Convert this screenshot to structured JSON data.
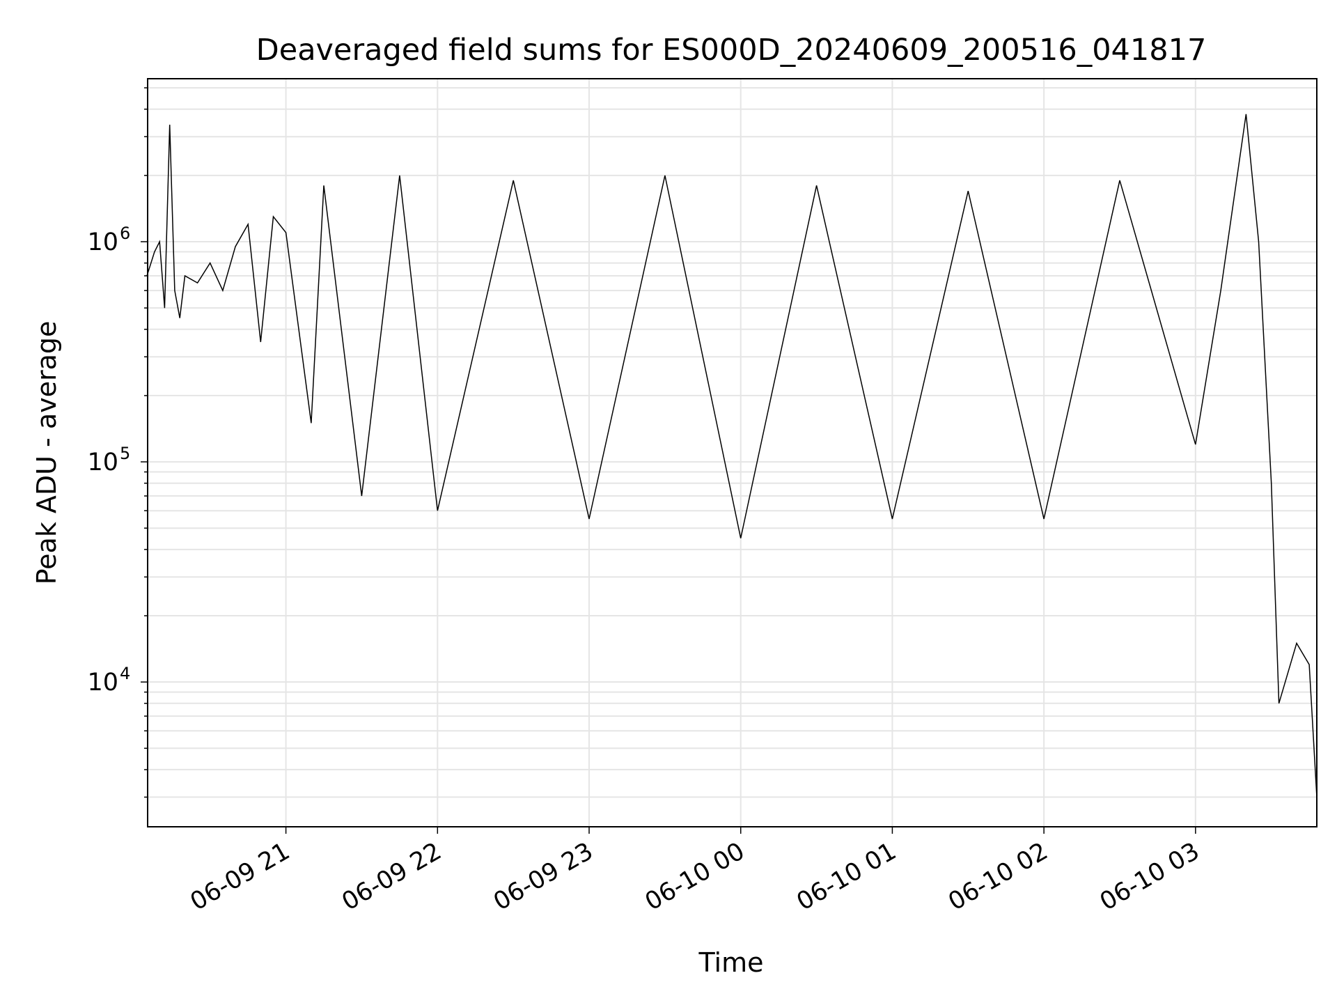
{
  "chart_data": {
    "type": "line",
    "title": "Deaveraged field sums for ES000D_20240609_200516_041817",
    "xlabel": "Time",
    "ylabel": "Peak ADU - average",
    "yscale": "log",
    "ylim": [
      2200,
      5500000
    ],
    "xlim": [
      "2024-06-09 20:05:16",
      "2024-06-10 03:48:00"
    ],
    "grid": true,
    "line_color": "#000000",
    "grid_color": "#e5e5e5",
    "x_ticks": [
      {
        "value": "2024-06-09 21:00",
        "label": "06-09 21"
      },
      {
        "value": "2024-06-09 22:00",
        "label": "06-09 22"
      },
      {
        "value": "2024-06-09 23:00",
        "label": "06-09 23"
      },
      {
        "value": "2024-06-10 00:00",
        "label": "06-10 00"
      },
      {
        "value": "2024-06-10 01:00",
        "label": "06-10 01"
      },
      {
        "value": "2024-06-10 02:00",
        "label": "06-10 02"
      },
      {
        "value": "2024-06-10 03:00",
        "label": "06-10 03"
      }
    ],
    "y_ticks": [
      {
        "value": 10000,
        "base": "10",
        "exp": "4"
      },
      {
        "value": 100000,
        "base": "10",
        "exp": "5"
      },
      {
        "value": 1000000,
        "base": "10",
        "exp": "6"
      }
    ],
    "series": [
      {
        "points": [
          [
            "2024-06-09 20:05",
            700000
          ],
          [
            "2024-06-09 20:08",
            900000
          ],
          [
            "2024-06-09 20:10",
            1000000
          ],
          [
            "2024-06-09 20:12",
            500000
          ],
          [
            "2024-06-09 20:14",
            3400000
          ],
          [
            "2024-06-09 20:16",
            600000
          ],
          [
            "2024-06-09 20:18",
            450000
          ],
          [
            "2024-06-09 20:20",
            700000
          ],
          [
            "2024-06-09 20:25",
            650000
          ],
          [
            "2024-06-09 20:30",
            800000
          ],
          [
            "2024-06-09 20:35",
            600000
          ],
          [
            "2024-06-09 20:40",
            950000
          ],
          [
            "2024-06-09 20:45",
            1200000
          ],
          [
            "2024-06-09 20:50",
            350000
          ],
          [
            "2024-06-09 20:55",
            1300000
          ],
          [
            "2024-06-09 21:00",
            1100000
          ],
          [
            "2024-06-09 21:10",
            150000
          ],
          [
            "2024-06-09 21:15",
            1800000
          ],
          [
            "2024-06-09 21:30",
            70000
          ],
          [
            "2024-06-09 21:45",
            2000000
          ],
          [
            "2024-06-09 22:00",
            60000
          ],
          [
            "2024-06-09 22:30",
            1900000
          ],
          [
            "2024-06-09 23:00",
            55000
          ],
          [
            "2024-06-09 23:30",
            2000000
          ],
          [
            "2024-06-10 00:00",
            45000
          ],
          [
            "2024-06-10 00:30",
            1800000
          ],
          [
            "2024-06-10 01:00",
            55000
          ],
          [
            "2024-06-10 01:30",
            1700000
          ],
          [
            "2024-06-10 02:00",
            55000
          ],
          [
            "2024-06-10 02:30",
            1900000
          ],
          [
            "2024-06-10 03:00",
            120000
          ],
          [
            "2024-06-10 03:10",
            600000
          ],
          [
            "2024-06-10 03:20",
            3800000
          ],
          [
            "2024-06-10 03:25",
            1000000
          ],
          [
            "2024-06-10 03:30",
            80000
          ],
          [
            "2024-06-10 03:33",
            8000
          ],
          [
            "2024-06-10 03:40",
            15000
          ],
          [
            "2024-06-10 03:45",
            12000
          ],
          [
            "2024-06-10 03:48",
            3000
          ]
        ]
      }
    ]
  }
}
